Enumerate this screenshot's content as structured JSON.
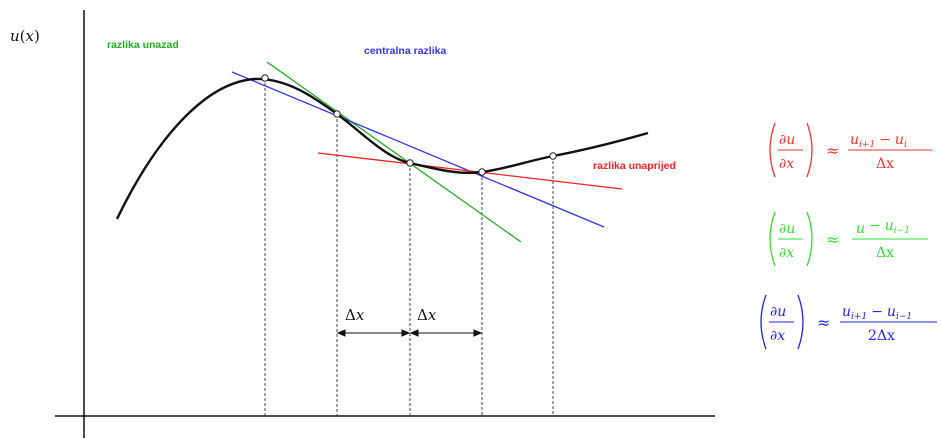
{
  "colors": {
    "curve": "#111111",
    "axis": "#111111",
    "forward": "#ee2222",
    "backward": "#22aa22",
    "central": "#3333ee",
    "formula_forward": "#ee3333",
    "formula_backward": "#33dd33",
    "formula_central": "#2222ee"
  },
  "axis_label": {
    "u": "u",
    "paren_open": "(",
    "x": "x",
    "paren_close": ")"
  },
  "labels": {
    "backward": "razlika unazad",
    "central": "centralna razlika",
    "forward": "razlika unaprijed"
  },
  "delta": {
    "symbol": "Δ",
    "var": "x"
  },
  "formulas": {
    "forward": {
      "lhs_num": "∂u",
      "lhs_den": "∂x",
      "approx": "≈",
      "num_a": "u",
      "num_a_sub": "i+1",
      "minus": "−",
      "num_b": "u",
      "num_b_sub": "i",
      "den": "Δx"
    },
    "backward": {
      "lhs_num": "∂u",
      "lhs_den": "∂x",
      "approx": "≈",
      "num_a": "u",
      "num_a_sub": "",
      "minus": "−",
      "num_b": "u",
      "num_b_sub": "i−1",
      "den": "Δx"
    },
    "central": {
      "lhs_num": "∂u",
      "lhs_den": "∂x",
      "approx": "≈",
      "num_a": "u",
      "num_a_sub": "i+1",
      "minus": "−",
      "num_b": "u",
      "num_b_sub": "i−1",
      "den": "2Δx"
    }
  }
}
